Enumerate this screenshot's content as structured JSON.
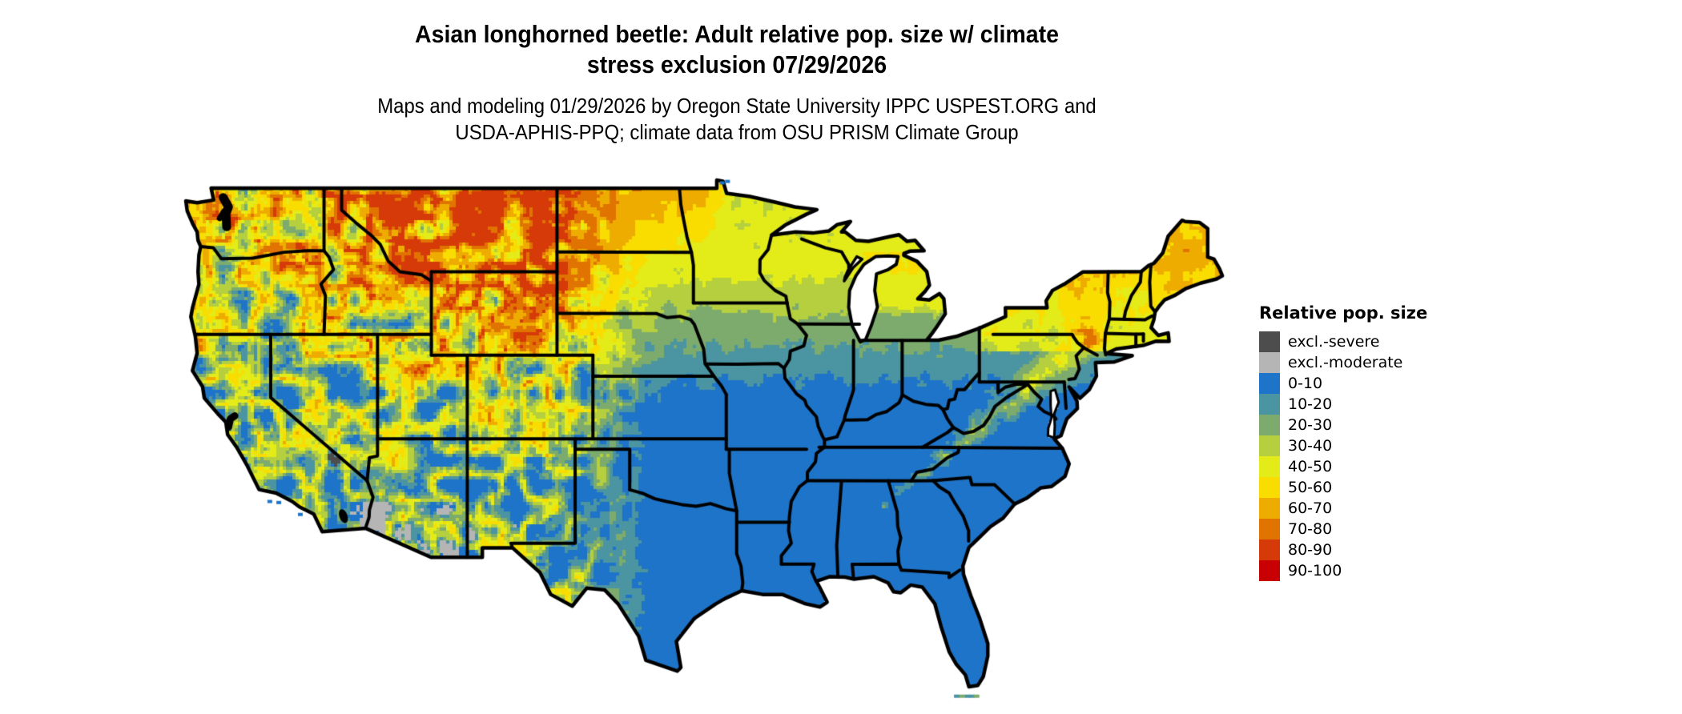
{
  "title": {
    "line1": "Asian longhorned beetle: Adult relative pop. size w/ climate",
    "line2": "stress exclusion 07/29/2026"
  },
  "subtitle": {
    "line1": "Maps and modeling 01/29/2026 by Oregon State University IPPC USPEST.ORG and",
    "line2": "USDA-APHIS-PPQ; climate data from OSU PRISM Climate Group"
  },
  "legend": {
    "title": "Relative pop. size",
    "entries": [
      {
        "label": "excl.-severe",
        "color": "#4d4d4d"
      },
      {
        "label": "excl.-moderate",
        "color": "#b5b5b5"
      },
      {
        "label": "0-10",
        "color": "#1e74c8"
      },
      {
        "label": "10-20",
        "color": "#4b94a1"
      },
      {
        "label": "20-30",
        "color": "#7cab6d"
      },
      {
        "label": "30-40",
        "color": "#b5cf3f"
      },
      {
        "label": "40-50",
        "color": "#e3eb19"
      },
      {
        "label": "50-60",
        "color": "#f9dc00"
      },
      {
        "label": "60-70",
        "color": "#eeac00"
      },
      {
        "label": "70-80",
        "color": "#e17300"
      },
      {
        "label": "80-90",
        "color": "#d53a08"
      },
      {
        "label": "90-100",
        "color": "#c90003"
      }
    ]
  },
  "map": {
    "area": "contiguous United States",
    "border_color": "#000000",
    "water_color": "#ffffff"
  }
}
